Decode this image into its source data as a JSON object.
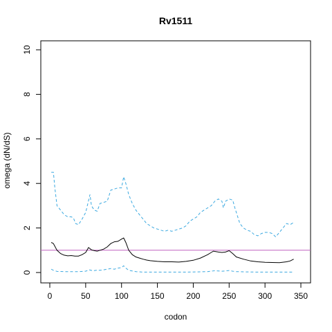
{
  "chart_data": {
    "type": "line",
    "title": "Rv1511",
    "xlabel": "codon",
    "ylabel": "omega (dN/dS)",
    "xlim": [
      0,
      350
    ],
    "ylim": [
      0,
      10
    ],
    "x_ticks": [
      0,
      50,
      100,
      150,
      200,
      250,
      300,
      350
    ],
    "y_ticks": [
      0,
      2,
      4,
      6,
      8,
      10
    ],
    "reference_line": {
      "y": 1,
      "color": "#c060c0"
    },
    "series": [
      {
        "style": "solid",
        "color": "#000000",
        "points": [
          [
            2,
            1.35
          ],
          [
            5,
            1.3
          ],
          [
            10,
            1.0
          ],
          [
            15,
            0.85
          ],
          [
            20,
            0.78
          ],
          [
            25,
            0.75
          ],
          [
            30,
            0.76
          ],
          [
            35,
            0.74
          ],
          [
            40,
            0.74
          ],
          [
            45,
            0.8
          ],
          [
            50,
            0.9
          ],
          [
            54,
            1.12
          ],
          [
            58,
            1.02
          ],
          [
            62,
            0.98
          ],
          [
            66,
            0.96
          ],
          [
            70,
            1.0
          ],
          [
            75,
            1.05
          ],
          [
            80,
            1.15
          ],
          [
            85,
            1.3
          ],
          [
            90,
            1.38
          ],
          [
            95,
            1.4
          ],
          [
            100,
            1.5
          ],
          [
            103,
            1.55
          ],
          [
            106,
            1.35
          ],
          [
            110,
            1.0
          ],
          [
            115,
            0.8
          ],
          [
            120,
            0.7
          ],
          [
            125,
            0.65
          ],
          [
            130,
            0.6
          ],
          [
            135,
            0.56
          ],
          [
            140,
            0.53
          ],
          [
            150,
            0.5
          ],
          [
            160,
            0.48
          ],
          [
            170,
            0.48
          ],
          [
            180,
            0.47
          ],
          [
            190,
            0.5
          ],
          [
            200,
            0.55
          ],
          [
            210,
            0.65
          ],
          [
            220,
            0.8
          ],
          [
            225,
            0.9
          ],
          [
            228,
            0.96
          ],
          [
            235,
            0.92
          ],
          [
            240,
            0.9
          ],
          [
            245,
            0.92
          ],
          [
            250,
            0.98
          ],
          [
            255,
            0.85
          ],
          [
            260,
            0.7
          ],
          [
            270,
            0.6
          ],
          [
            280,
            0.52
          ],
          [
            290,
            0.48
          ],
          [
            300,
            0.46
          ],
          [
            310,
            0.45
          ],
          [
            320,
            0.44
          ],
          [
            330,
            0.48
          ],
          [
            335,
            0.52
          ],
          [
            340,
            0.6
          ]
        ]
      },
      {
        "style": "dashed",
        "color": "#3aa8e0",
        "points": [
          [
            2,
            4.5
          ],
          [
            5,
            4.5
          ],
          [
            7,
            3.8
          ],
          [
            10,
            3.0
          ],
          [
            15,
            2.8
          ],
          [
            20,
            2.6
          ],
          [
            25,
            2.5
          ],
          [
            30,
            2.5
          ],
          [
            33,
            2.45
          ],
          [
            36,
            2.2
          ],
          [
            40,
            2.15
          ],
          [
            45,
            2.4
          ],
          [
            50,
            2.7
          ],
          [
            53,
            3.1
          ],
          [
            56,
            3.5
          ],
          [
            58,
            3.0
          ],
          [
            62,
            2.8
          ],
          [
            66,
            2.75
          ],
          [
            70,
            3.1
          ],
          [
            75,
            3.15
          ],
          [
            80,
            3.2
          ],
          [
            85,
            3.7
          ],
          [
            90,
            3.75
          ],
          [
            95,
            3.8
          ],
          [
            100,
            3.8
          ],
          [
            103,
            4.3
          ],
          [
            106,
            4.0
          ],
          [
            110,
            3.5
          ],
          [
            115,
            3.1
          ],
          [
            120,
            2.8
          ],
          [
            125,
            2.6
          ],
          [
            130,
            2.4
          ],
          [
            135,
            2.2
          ],
          [
            140,
            2.1
          ],
          [
            145,
            2.0
          ],
          [
            150,
            1.95
          ],
          [
            155,
            1.9
          ],
          [
            160,
            1.85
          ],
          [
            165,
            1.9
          ],
          [
            170,
            1.85
          ],
          [
            175,
            1.9
          ],
          [
            180,
            1.95
          ],
          [
            185,
            2.0
          ],
          [
            190,
            2.1
          ],
          [
            195,
            2.3
          ],
          [
            200,
            2.4
          ],
          [
            205,
            2.5
          ],
          [
            210,
            2.7
          ],
          [
            215,
            2.8
          ],
          [
            220,
            2.9
          ],
          [
            225,
            3.0
          ],
          [
            230,
            3.2
          ],
          [
            235,
            3.3
          ],
          [
            240,
            3.2
          ],
          [
            242,
            2.9
          ],
          [
            245,
            3.2
          ],
          [
            250,
            3.3
          ],
          [
            255,
            3.25
          ],
          [
            258,
            2.9
          ],
          [
            262,
            2.5
          ],
          [
            265,
            2.2
          ],
          [
            270,
            2.0
          ],
          [
            275,
            1.9
          ],
          [
            280,
            1.85
          ],
          [
            285,
            1.7
          ],
          [
            290,
            1.65
          ],
          [
            295,
            1.75
          ],
          [
            300,
            1.8
          ],
          [
            305,
            1.8
          ],
          [
            310,
            1.75
          ],
          [
            315,
            1.6
          ],
          [
            320,
            1.8
          ],
          [
            325,
            2.0
          ],
          [
            330,
            2.2
          ],
          [
            335,
            2.15
          ],
          [
            340,
            2.25
          ]
        ]
      },
      {
        "style": "dashed",
        "color": "#3aa8e0",
        "points": [
          [
            2,
            0.15
          ],
          [
            5,
            0.1
          ],
          [
            10,
            0.05
          ],
          [
            20,
            0.04
          ],
          [
            30,
            0.04
          ],
          [
            40,
            0.04
          ],
          [
            50,
            0.06
          ],
          [
            55,
            0.12
          ],
          [
            60,
            0.08
          ],
          [
            65,
            0.1
          ],
          [
            70,
            0.1
          ],
          [
            75,
            0.12
          ],
          [
            80,
            0.15
          ],
          [
            85,
            0.18
          ],
          [
            90,
            0.15
          ],
          [
            95,
            0.2
          ],
          [
            100,
            0.22
          ],
          [
            103,
            0.3
          ],
          [
            106,
            0.2
          ],
          [
            110,
            0.1
          ],
          [
            120,
            0.04
          ],
          [
            130,
            0.02
          ],
          [
            150,
            0.02
          ],
          [
            170,
            0.02
          ],
          [
            190,
            0.02
          ],
          [
            210,
            0.03
          ],
          [
            220,
            0.04
          ],
          [
            225,
            0.06
          ],
          [
            230,
            0.08
          ],
          [
            235,
            0.07
          ],
          [
            240,
            0.06
          ],
          [
            245,
            0.07
          ],
          [
            250,
            0.09
          ],
          [
            255,
            0.06
          ],
          [
            260,
            0.04
          ],
          [
            270,
            0.03
          ],
          [
            290,
            0.02
          ],
          [
            310,
            0.02
          ],
          [
            330,
            0.02
          ],
          [
            340,
            0.02
          ]
        ]
      }
    ]
  }
}
